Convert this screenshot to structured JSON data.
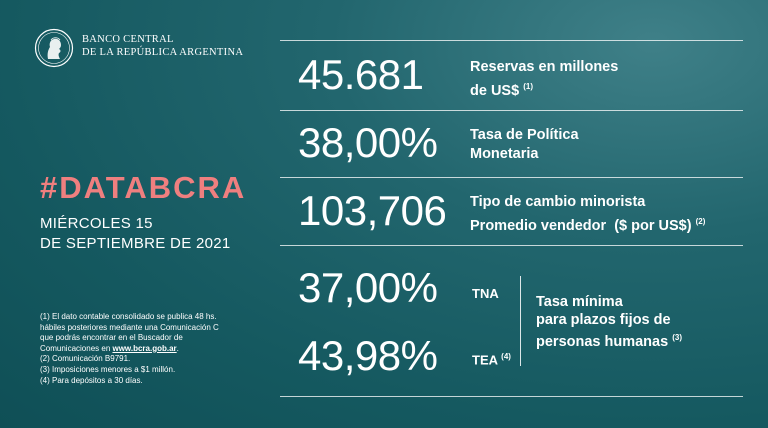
{
  "bank": {
    "line1": "BANCO CENTRAL",
    "line2": "DE LA REPÚBLICA ARGENTINA"
  },
  "logo_icon": "bcra-profile-seal",
  "hashtag": "#DATABCRA",
  "date": {
    "line1": "MIÉRCOLES 15",
    "line2": "DE SEPTIEMBRE DE 2021"
  },
  "stats": {
    "reservas": {
      "value": "45.681",
      "label_line1": "Reservas en millones",
      "label_line2": "de US$",
      "note": "(1)"
    },
    "tasa_politica": {
      "value": "38,00%",
      "label_line1": "Tasa de Política",
      "label_line2": "Monetaria"
    },
    "tipo_cambio": {
      "value": "103,706",
      "label_line1": "Tipo de cambio minorista",
      "label_line2": "Promedio vendedor  ($ por US$)",
      "note": "(2)"
    },
    "tna": {
      "value": "37,00%",
      "label": "TNA"
    },
    "tea": {
      "value": "43,98%",
      "label": "TEA",
      "note": "(4)"
    },
    "plazos_fijos": {
      "line1": "Tasa mínima",
      "line2": "para plazos fijos de",
      "line3": "personas humanas",
      "note": "(3)"
    }
  },
  "footnotes": {
    "f1a": "(1) El dato contable consolidado se publica 48 hs.",
    "f1b": "hábiles posteriores mediante una Comunicación C",
    "f1c": "que podrás encontrar en el Buscador de",
    "f1d_pre": "Comunicaciones en ",
    "f1d_link": "www.bcra.gob.ar",
    "f1d_post": ".",
    "f2": "(2) Comunicación B9791.",
    "f3": "(3) Imposiciones menores a $1 millón.",
    "f4": "(4) Para depósitos a 30 días."
  },
  "colors": {
    "background": "#155960",
    "accent": "#ef7f7f",
    "text": "#ffffff"
  }
}
